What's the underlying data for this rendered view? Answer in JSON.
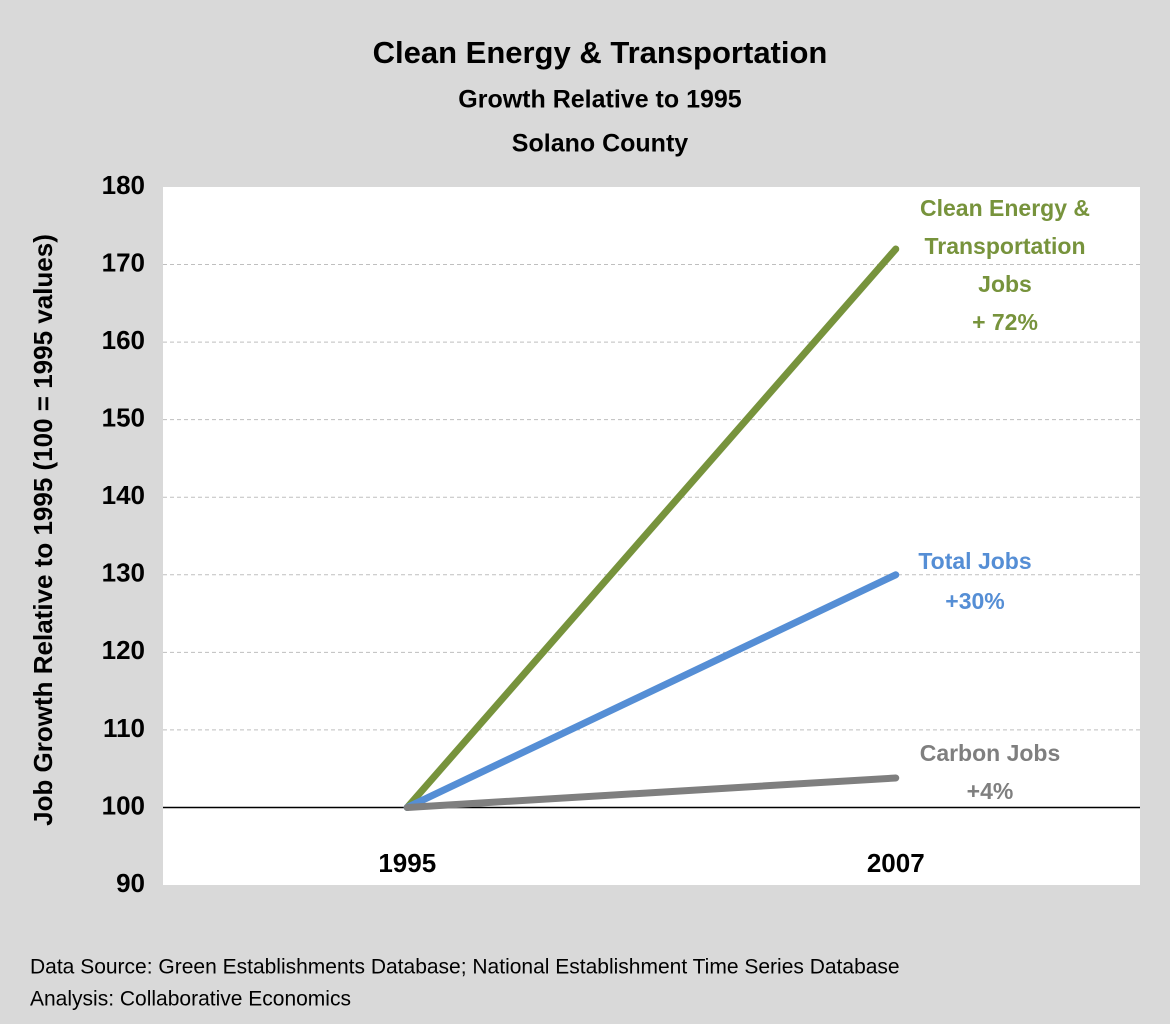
{
  "chart_data": {
    "type": "line",
    "title": "Clean Energy & Transportation",
    "subtitle": [
      "Growth Relative to 1995",
      "Solano County"
    ],
    "y_label": "Job Growth Relative to 1995 (100 = 1995 values)",
    "categories": [
      "1995",
      "2007"
    ],
    "series": [
      {
        "label": [
          "Clean Energy &",
          "Transportation",
          "Jobs",
          "+ 72%"
        ],
        "color": "#77933c",
        "values": [
          100,
          172
        ]
      },
      {
        "label": [
          "Total Jobs",
          "+30%"
        ],
        "color": "#558ed5",
        "values": [
          100,
          130
        ]
      },
      {
        "label": [
          "Carbon Jobs",
          "+4%"
        ],
        "color": "#7f7f7f",
        "values": [
          100,
          103.8
        ]
      }
    ],
    "ylim": [
      90,
      180
    ],
    "yticks": [
      90,
      100,
      110,
      120,
      130,
      140,
      150,
      160,
      170,
      180
    ],
    "grid": true,
    "footer": [
      "Data Source: Green Establishments Database; National Establishment Time Series Database",
      "Analysis: Collaborative Economics"
    ]
  }
}
